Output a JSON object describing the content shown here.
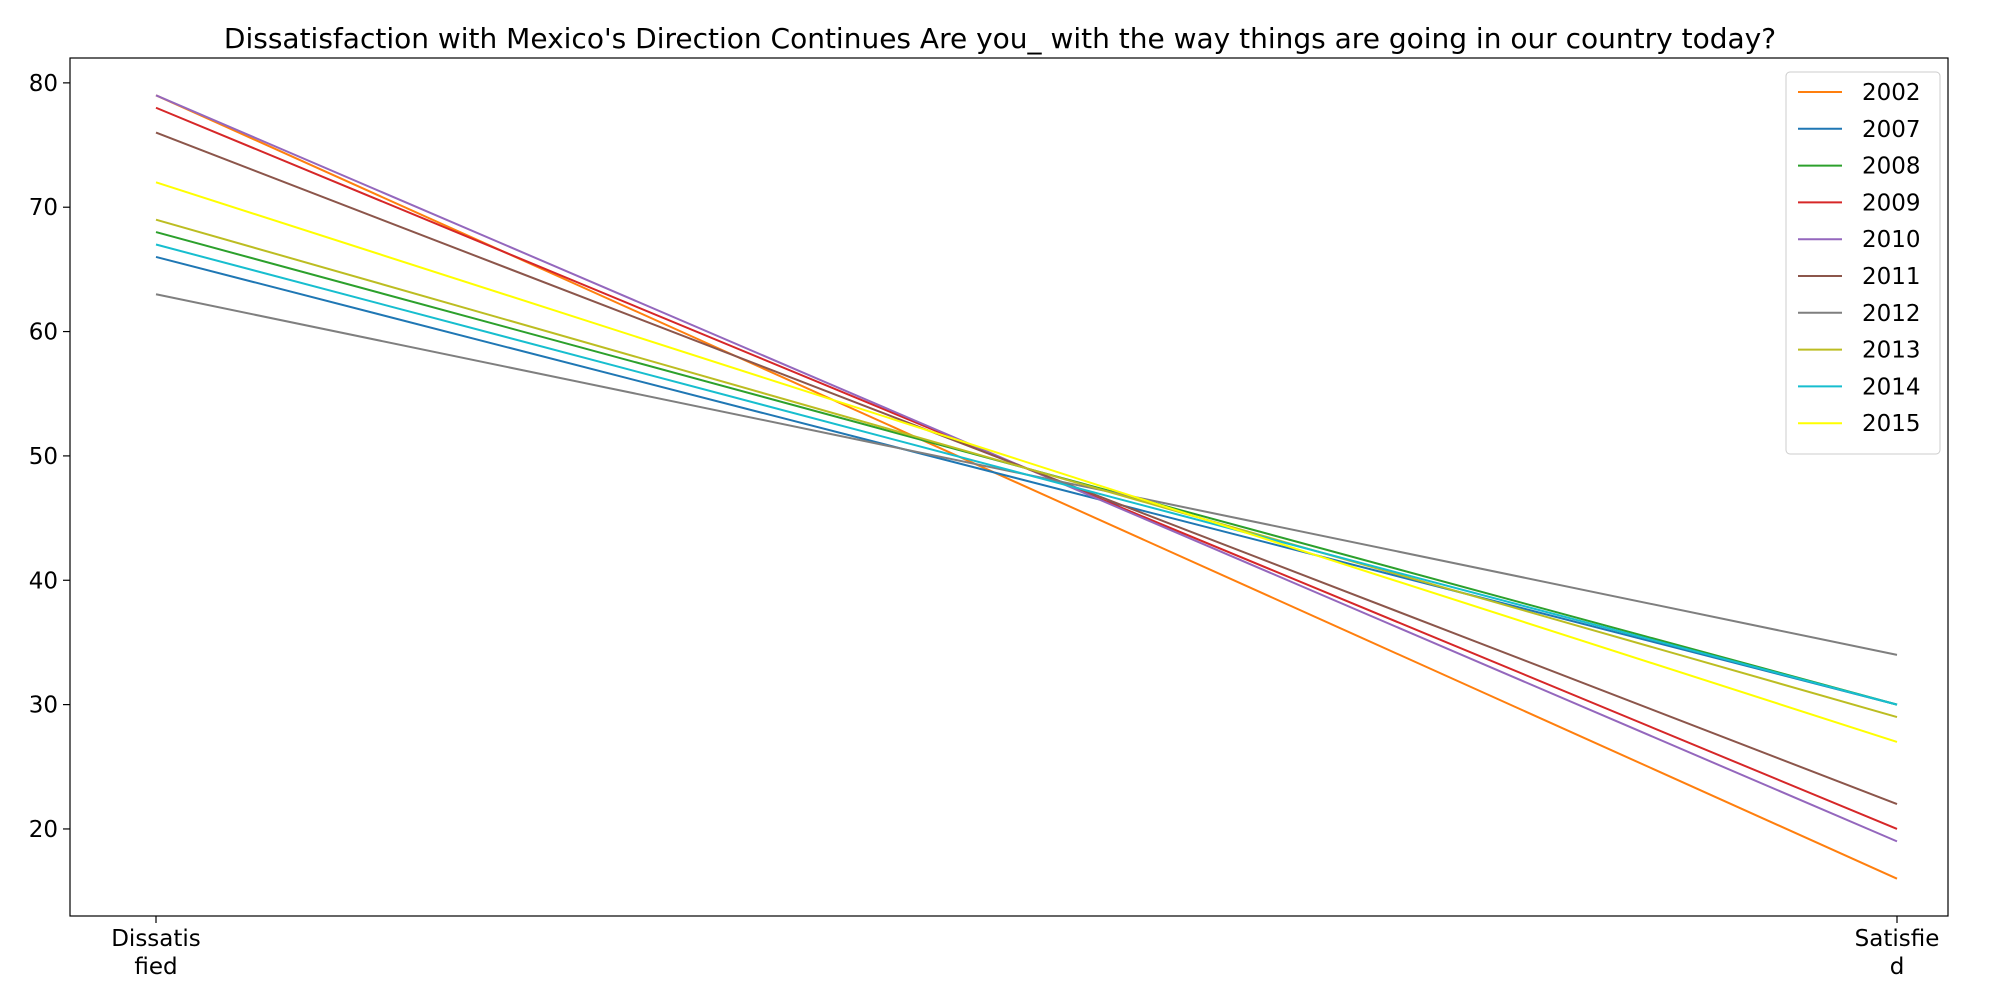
{
  "chart_data": {
    "type": "line",
    "title": "Dissatisfaction with Mexico's Direction Continues Are you_ with the way things are going in our country today?",
    "xlabel": "",
    "ylabel": "",
    "categories": [
      [
        "Dissatis",
        "fied"
      ],
      [
        "Satisfie",
        "d"
      ]
    ],
    "ylim": [
      13,
      82
    ],
    "yticks": [
      20,
      30,
      40,
      50,
      60,
      70,
      80
    ],
    "grid": false,
    "legend_position": "top-right",
    "series": [
      {
        "name": "2002",
        "color": "#ff7f0e",
        "values": [
          79,
          16
        ]
      },
      {
        "name": "2007",
        "color": "#1f77b4",
        "values": [
          66,
          30
        ]
      },
      {
        "name": "2008",
        "color": "#2ca02c",
        "values": [
          68,
          30
        ]
      },
      {
        "name": "2009",
        "color": "#d62728",
        "values": [
          78,
          20
        ]
      },
      {
        "name": "2010",
        "color": "#9467bd",
        "values": [
          79,
          19
        ]
      },
      {
        "name": "2011",
        "color": "#8c564b",
        "values": [
          76,
          22
        ]
      },
      {
        "name": "2012",
        "color": "#7f7f7f",
        "values": [
          63,
          34
        ]
      },
      {
        "name": "2013",
        "color": "#bcbd22",
        "values": [
          69,
          29
        ]
      },
      {
        "name": "2014",
        "color": "#17becf",
        "values": [
          67,
          30
        ]
      },
      {
        "name": "2015",
        "color": "#ffff00",
        "values": [
          72,
          27
        ]
      }
    ]
  }
}
